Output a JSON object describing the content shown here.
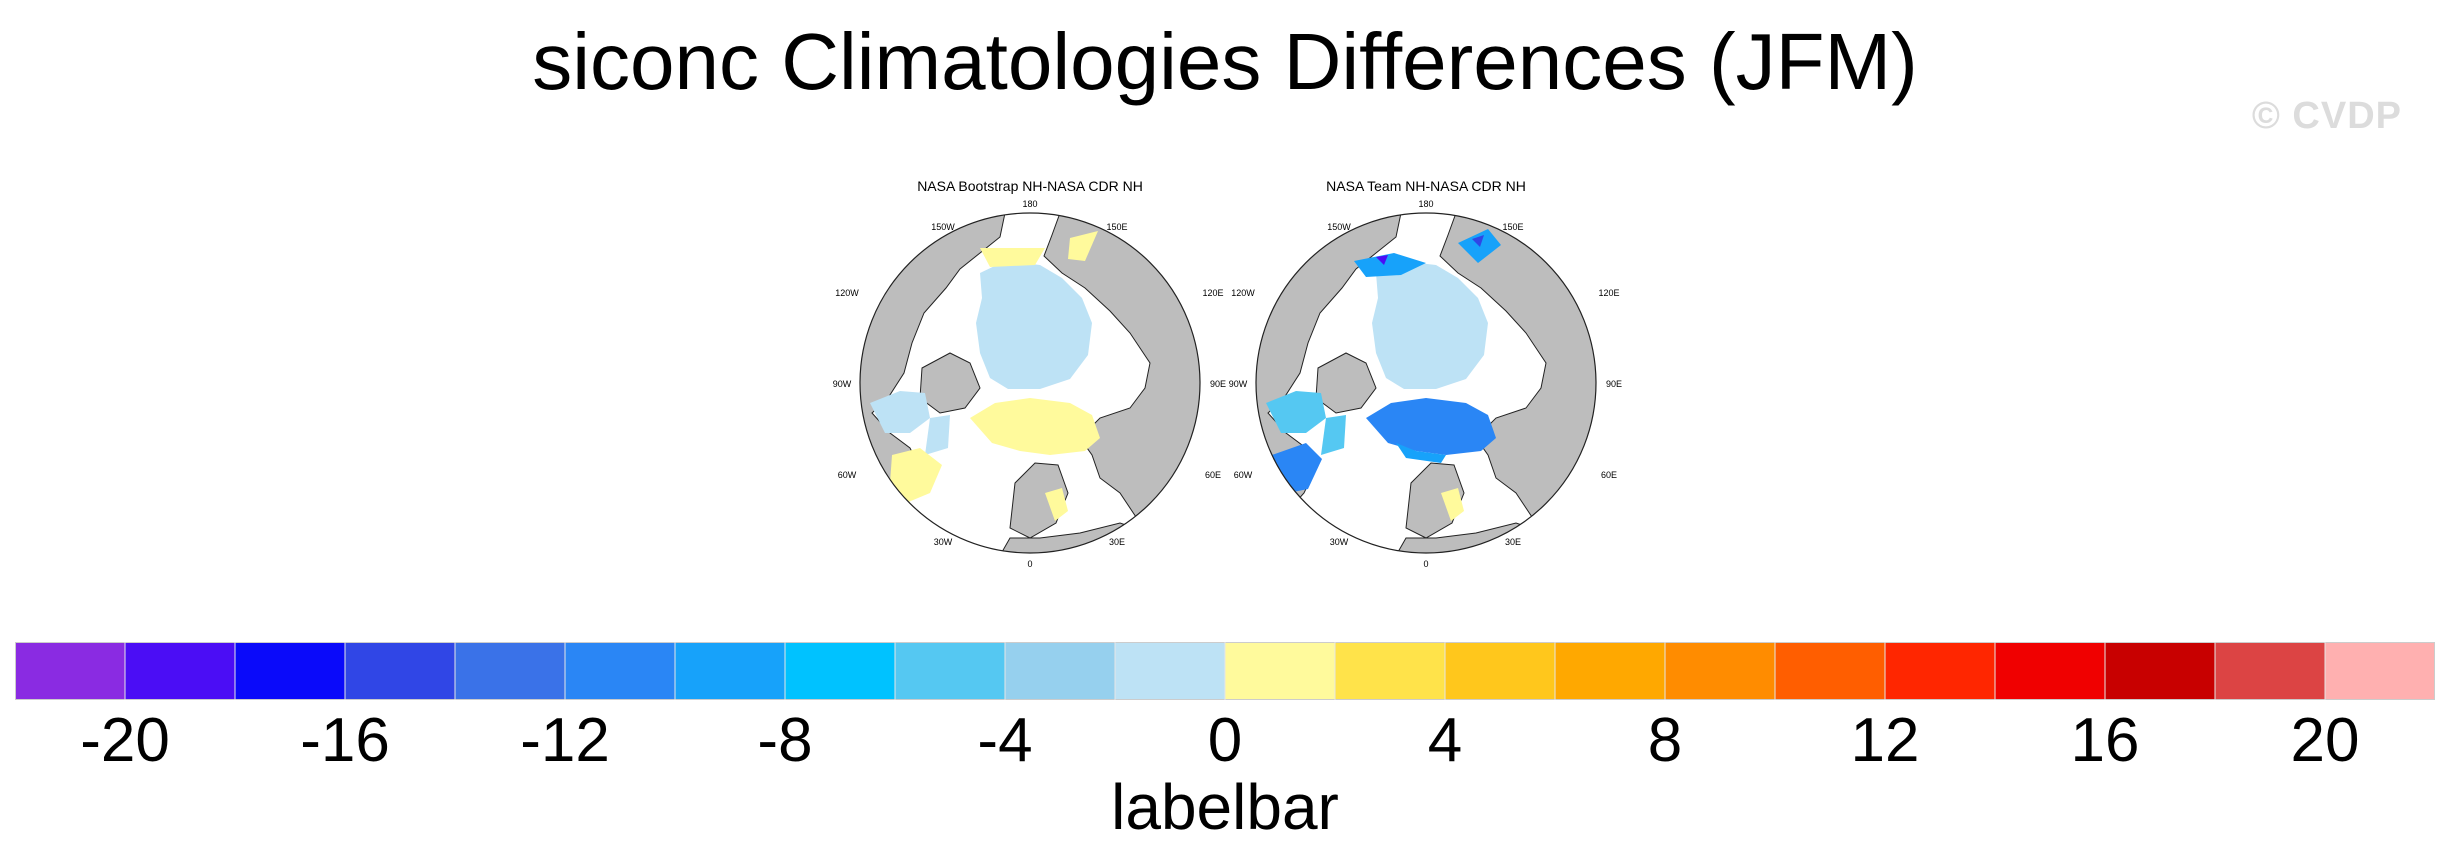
{
  "title": "siconc Climatologies Differences (JFM)",
  "watermark": "© CVDP",
  "panels": [
    {
      "title": "NASA Bootstrap NH-NASA CDR NH",
      "variant": "bootstrap"
    },
    {
      "title": "NASA Team NH-NASA CDR NH",
      "variant": "team"
    }
  ],
  "longitude_labels": [
    "180",
    "150E",
    "120E",
    "90E",
    "60E",
    "30E",
    "0",
    "30W",
    "60W",
    "90W",
    "120W",
    "150W"
  ],
  "colors": {
    "land": "#bdbdbd",
    "ocean": "#ffffff",
    "outline": "#222222"
  },
  "colorbar": {
    "colors": [
      "#8a2be2",
      "#4b0df5",
      "#0a0afa",
      "#3046e6",
      "#3a72e8",
      "#2a86f5",
      "#17a2fa",
      "#00c2ff",
      "#55c8f2",
      "#96d0ee",
      "#bde2f5",
      "#fffa9c",
      "#ffe34a",
      "#ffc71c",
      "#ffa800",
      "#ff8c00",
      "#ff5e00",
      "#ff2600",
      "#f00000",
      "#c80000",
      "#dc4444",
      "#ffb0b0"
    ],
    "tick_labels": [
      "-20",
      "-16",
      "-12",
      "-8",
      "-4",
      "0",
      "4",
      "8",
      "12",
      "16",
      "20"
    ],
    "title": "labelbar"
  }
}
